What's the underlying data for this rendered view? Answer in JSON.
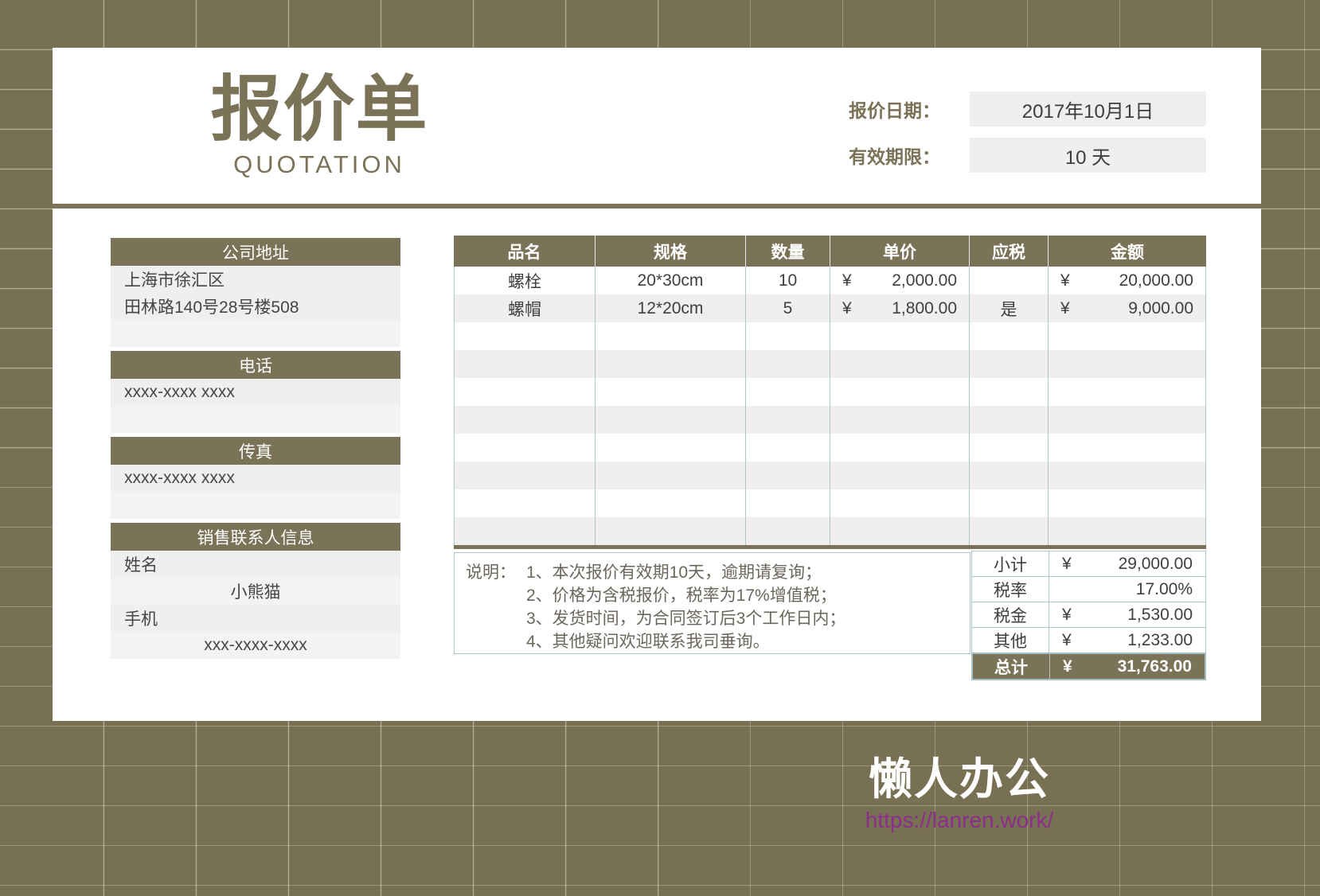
{
  "header": {
    "title": "报价单",
    "subtitle": "QUOTATION",
    "date_label": "报价日期：",
    "date_value": "2017年10月1日",
    "validity_label": "有效期限：",
    "validity_value": "10 天"
  },
  "sidebar": {
    "sections": [
      {
        "header": "公司地址",
        "rows": [
          "上海市徐汇区",
          "田林路140号28号楼508",
          ""
        ]
      },
      {
        "header": "电话",
        "rows": [
          "xxxx-xxxx xxxx",
          ""
        ]
      },
      {
        "header": "传真",
        "rows": [
          "xxxx-xxxx xxxx",
          ""
        ]
      },
      {
        "header": "销售联系人信息",
        "rows": [
          "姓名",
          "小熊猫",
          "手机",
          "xxx-xxxx-xxxx"
        ]
      }
    ]
  },
  "table": {
    "columns": [
      "品名",
      "规格",
      "数量",
      "单价",
      "应税",
      "金额"
    ],
    "currency": "¥",
    "rows": [
      {
        "name": "螺栓",
        "spec": "20*30cm",
        "qty": "10",
        "price": "2,000.00",
        "taxable": "",
        "amount": "20,000.00"
      },
      {
        "name": "螺帽",
        "spec": "12*20cm",
        "qty": "5",
        "price": "1,800.00",
        "taxable": "是",
        "amount": "9,000.00"
      }
    ]
  },
  "notes": {
    "label": "说明：",
    "lines": [
      "1、本次报价有效期10天，逾期请复询；",
      "2、价格为含税报价，税率为17%增值税；",
      "3、发货时间，为合同签订后3个工作日内；",
      "4、其他疑问欢迎联系我司垂询。"
    ]
  },
  "summary": {
    "rows": [
      {
        "label": "小计",
        "currency": "¥",
        "value": "29,000.00"
      },
      {
        "label": "税率",
        "currency": "",
        "value": "17.00%"
      },
      {
        "label": "税金",
        "currency": "¥",
        "value": "1,530.00"
      },
      {
        "label": "其他",
        "currency": "¥",
        "value": "1,233.00"
      },
      {
        "label": "总计",
        "currency": "¥",
        "value": "31,763.00"
      }
    ]
  },
  "footer": {
    "brand": "懒人办公",
    "link": "https://lanren.work/"
  },
  "colors": {
    "olive": "#7b7357",
    "page_background": "#787053",
    "field_box": "#efefef",
    "row_stripe": "#f0efee",
    "table_border": "#aac7cc",
    "link_purple": "#8c2d8c"
  }
}
